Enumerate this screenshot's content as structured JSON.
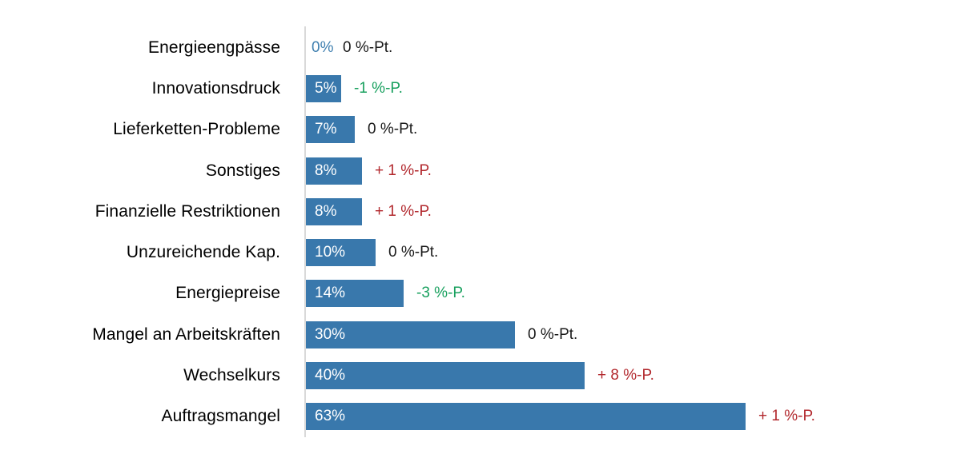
{
  "page": {
    "background": "#ffffff"
  },
  "chart_data": {
    "type": "bar",
    "orientation": "horizontal",
    "title": "",
    "xlabel": "",
    "ylabel": "",
    "grid": false,
    "legend": false,
    "xlim": [
      0,
      94
    ],
    "categories": [
      "Energieengpässe",
      "Innovationsdruck",
      "Lieferketten-Probleme",
      "Sonstiges",
      "Finanzielle Restriktionen",
      "Unzureichende Kap.",
      "Energiepreise",
      "Mangel an Arbeitskräften",
      "Wechselkurs",
      "Auftragsmangel"
    ],
    "values": [
      0,
      5,
      7,
      8,
      8,
      10,
      14,
      30,
      40,
      63
    ],
    "value_labels": [
      "0%",
      "5%",
      "7%",
      "8%",
      "8%",
      "10%",
      "14%",
      "30%",
      "40%",
      "63%"
    ],
    "change_labels": [
      "0 %-Pt.",
      "-1 %-P.",
      "0 %-Pt.",
      "+ 1 %-P.",
      "+ 1 %-P.",
      "0 %-Pt.",
      "-3 %-P.",
      "0 %-Pt.",
      "+ 8 %-P.",
      "+ 1 %-P."
    ],
    "change_types": [
      "neutral",
      "decrease",
      "neutral",
      "increase",
      "increase",
      "neutral",
      "decrease",
      "neutral",
      "increase",
      "increase"
    ],
    "colors": {
      "bar": "#3978ac",
      "value_label_on_bar": "#ffffff",
      "value_label_zero": "#4080b0",
      "increase_text": "#b2282d",
      "decrease_text": "#18a05e",
      "neutral_text": "#1a1a1a",
      "category_text": "#000000",
      "axis_line": "#d9d9d9"
    },
    "pixels_per_percent": 8.71
  }
}
